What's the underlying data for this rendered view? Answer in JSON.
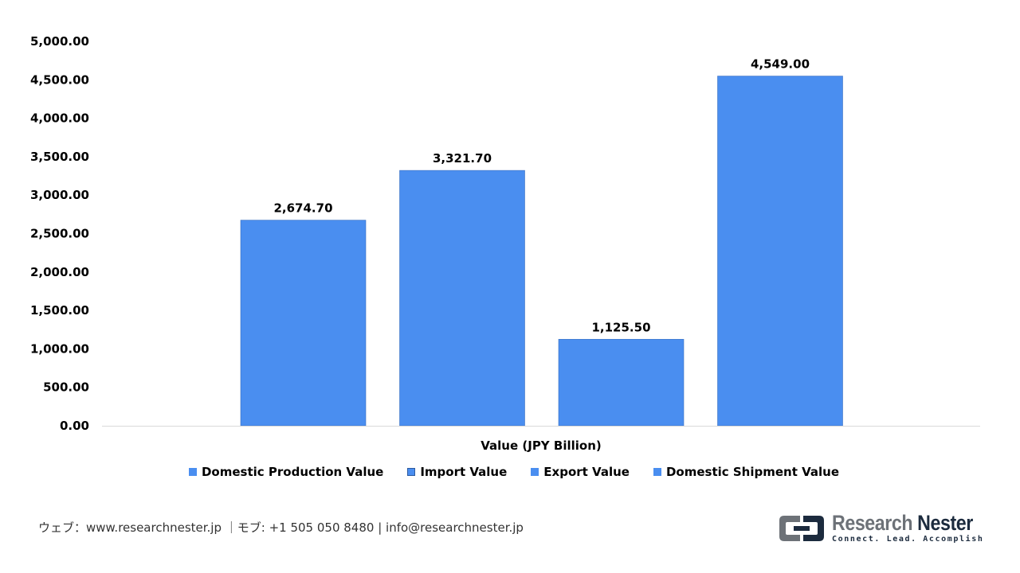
{
  "chart_data": {
    "type": "bar",
    "title": "",
    "xlabel": "Value (JPY Billion)",
    "ylabel": "",
    "ylim": [
      0,
      5000
    ],
    "y_ticks": [
      "0.00",
      "500.00",
      "1,000.00",
      "1,500.00",
      "2,000.00",
      "2,500.00",
      "3,000.00",
      "3,500.00",
      "4,000.00",
      "4,500.00",
      "5,000.00"
    ],
    "y_tick_values": [
      0,
      500,
      1000,
      1500,
      2000,
      2500,
      3000,
      3500,
      4000,
      4500,
      5000
    ],
    "categories": [
      "Value (JPY Billion)"
    ],
    "grid": false,
    "legend_position": "bottom",
    "series": [
      {
        "name": "Domestic Production Value",
        "values": [
          2674.7
        ],
        "label": "2,674.70",
        "color": "#4a8ef0"
      },
      {
        "name": "Import Value",
        "values": [
          3321.7
        ],
        "label": "3,321.70",
        "color": "#4a8ef0"
      },
      {
        "name": "Export Value",
        "values": [
          1125.5
        ],
        "label": "1,125.50",
        "color": "#4a8ef0"
      },
      {
        "name": "Domestic Shipment Value",
        "values": [
          4549.0
        ],
        "label": "4,549.00",
        "color": "#4a8ef0"
      }
    ]
  },
  "footer": {
    "contact": "ウェブ：www.researchnester.jp ｜モブ: +1 505 050 8480 | info@researchnester.jp"
  },
  "logo": {
    "name_part1": "Research",
    "name_part2": "Nester",
    "tagline": "Connect. Lead. Accomplish",
    "icon": "research-nester-logo-mark"
  }
}
